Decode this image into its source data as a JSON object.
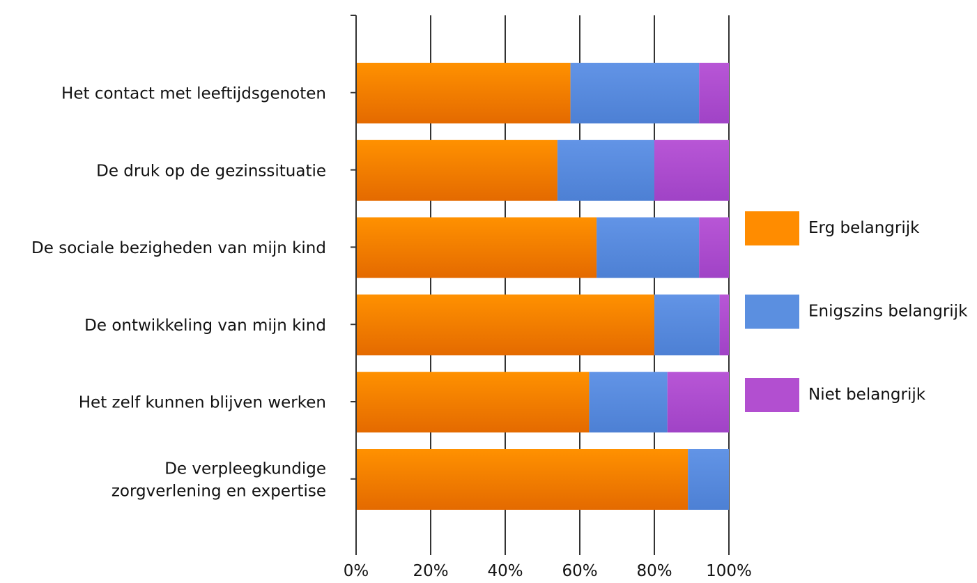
{
  "chart_data": {
    "type": "bar",
    "orientation": "horizontal",
    "stacked": true,
    "normalized": true,
    "categories": [
      [
        "Het contact met leeftijdsgenoten"
      ],
      [
        "De druk op de gezinssituatie"
      ],
      [
        "De sociale bezigheden van mijn kind"
      ],
      [
        "De ontwikkeling van mijn kind"
      ],
      [
        "Het zelf kunnen blijven werken"
      ],
      [
        "De verpleegkundige",
        "zorgverlening en expertise"
      ]
    ],
    "series": [
      {
        "name": "Erg belangrijk",
        "color": "#ff8c00",
        "values": [
          57.5,
          54,
          64.5,
          80,
          62.5,
          89
        ]
      },
      {
        "name": "Enigszins belangrijk",
        "color": "#5b8fe0",
        "values": [
          34.5,
          26,
          27.5,
          17.5,
          21,
          11
        ]
      },
      {
        "name": "Niet belangrijk",
        "color": "#b24fd0",
        "values": [
          8,
          20,
          8,
          2.5,
          16.5,
          0
        ]
      }
    ],
    "x_ticks": [
      "0%",
      "20%",
      "40%",
      "60%",
      "80%",
      "100%"
    ],
    "xlim": [
      0,
      100
    ],
    "grid": "vertical",
    "legend_position": "right"
  }
}
